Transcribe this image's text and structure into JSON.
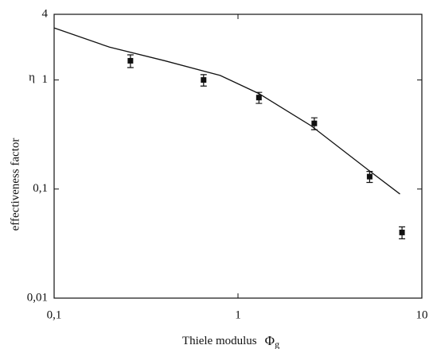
{
  "chart_data": {
    "type": "scatter",
    "log_x": true,
    "log_y": true,
    "grid": false,
    "x_label": "Thiele modulus",
    "x_symbol": "Φ",
    "x_symbol_sub": "g",
    "y_label": "effectiveness factor",
    "y_symbol": "η",
    "xlim": [
      0.1,
      10
    ],
    "ylim": [
      0.01,
      4
    ],
    "xticks": [
      {
        "value": 0.1,
        "label": "0,1"
      },
      1,
      10
    ],
    "yticks": [
      {
        "value": 0.01,
        "label": "0,01"
      },
      {
        "value": 0.1,
        "label": "0,1"
      },
      1,
      4
    ],
    "line": {
      "color": "#111111",
      "x": [
        0.1,
        0.2,
        0.4,
        0.8,
        1.3,
        2.5,
        5.1,
        7.6
      ],
      "y": [
        3.0,
        2.0,
        1.5,
        1.1,
        0.75,
        0.38,
        0.15,
        0.09
      ]
    },
    "points": {
      "color": "#111111",
      "x": [
        0.26,
        0.65,
        1.3,
        2.6,
        5.2,
        7.8
      ],
      "y": [
        1.5,
        1.0,
        0.69,
        0.4,
        0.13,
        0.04
      ],
      "errors": [
        0.2,
        0.12,
        0.08,
        0.05,
        0.015,
        0.005
      ]
    }
  }
}
